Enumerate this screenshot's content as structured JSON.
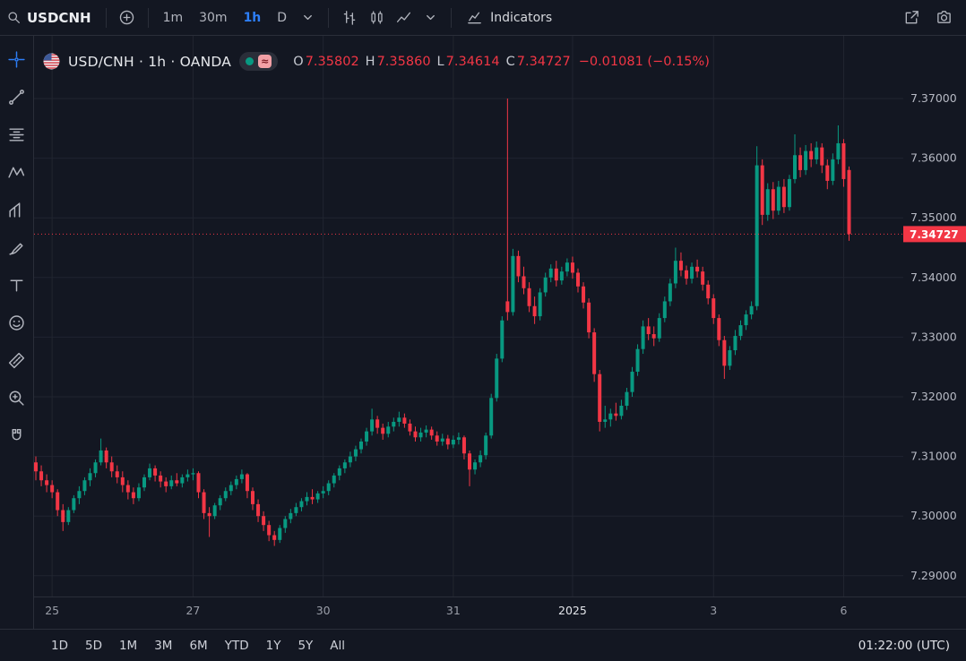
{
  "colors": {
    "bg": "#131722",
    "panel_border": "#2a2e39",
    "grid": "#212530",
    "up": "#089981",
    "down": "#f23645",
    "accent": "#2d7ff9",
    "axis_text": "#b7bac4",
    "muted": "#b2b5be"
  },
  "top_toolbar": {
    "symbol": "USDCNH",
    "intervals": [
      {
        "label": "1m",
        "active": false
      },
      {
        "label": "30m",
        "active": false
      },
      {
        "label": "1h",
        "active": true
      },
      {
        "label": "D",
        "active": false
      }
    ],
    "indicators_label": "Indicators"
  },
  "left_toolbar": {
    "tools": [
      {
        "name": "crosshair",
        "active": true
      },
      {
        "name": "trend-line",
        "active": false
      },
      {
        "name": "fib-retracement",
        "active": false
      },
      {
        "name": "pattern",
        "active": false
      },
      {
        "name": "projection",
        "active": false
      },
      {
        "name": "brush",
        "active": false
      },
      {
        "name": "text",
        "active": false
      },
      {
        "name": "emoji",
        "active": false
      },
      {
        "name": "measure",
        "active": false
      },
      {
        "name": "zoom",
        "active": false
      },
      {
        "name": "magnet",
        "active": false
      }
    ]
  },
  "legend": {
    "title": "USD/CNH · 1h · OANDA",
    "status": {
      "dot": "market-open",
      "badge": "≈"
    },
    "ohlc": [
      {
        "label": "O",
        "value": "7.35802"
      },
      {
        "label": "H",
        "value": "7.35860"
      },
      {
        "label": "L",
        "value": "7.34614"
      },
      {
        "label": "C",
        "value": "7.34727"
      }
    ],
    "change": "−0.01081 (−0.15%)"
  },
  "price_axis": {
    "last_price_label": "7.34727"
  },
  "bottom_toolbar": {
    "ranges": [
      "1D",
      "5D",
      "1M",
      "3M",
      "6M",
      "YTD",
      "1Y",
      "5Y",
      "All"
    ],
    "clock": "01:22:00 (UTC)"
  },
  "chart_data": {
    "type": "candlestick",
    "title": "USD/CNH 1h OANDA",
    "interval": "1h",
    "exchange": "OANDA",
    "ohlc_current": {
      "open": 7.35802,
      "high": 7.3586,
      "low": 7.34614,
      "close": 7.34727,
      "change": -0.01081,
      "change_pct": -0.15
    },
    "last_price": 7.34727,
    "ylim": [
      7.2866,
      7.3805
    ],
    "y_ticks": [
      {
        "v": 7.37,
        "label": "7.37000"
      },
      {
        "v": 7.36,
        "label": "7.36000"
      },
      {
        "v": 7.35,
        "label": "7.35000"
      },
      {
        "v": 7.34,
        "label": "7.34000"
      },
      {
        "v": 7.33,
        "label": "7.33000"
      },
      {
        "v": 7.32,
        "label": "7.32000"
      },
      {
        "v": 7.31,
        "label": "7.31000"
      },
      {
        "v": 7.3,
        "label": "7.30000"
      },
      {
        "v": 7.29,
        "label": "7.29000"
      }
    ],
    "x_ticks": [
      {
        "i": 3,
        "label": "25"
      },
      {
        "i": 29,
        "label": "27"
      },
      {
        "i": 53,
        "label": "30"
      },
      {
        "i": 77,
        "label": "31"
      },
      {
        "i": 99,
        "label": "2025",
        "major": true
      },
      {
        "i": 125,
        "label": "3"
      },
      {
        "i": 149,
        "label": "6"
      }
    ],
    "candles": [
      [
        7.309,
        7.31,
        7.306,
        7.3075
      ],
      [
        7.3075,
        7.3085,
        7.305,
        7.306
      ],
      [
        7.306,
        7.307,
        7.304,
        7.3052
      ],
      [
        7.3052,
        7.306,
        7.303,
        7.304
      ],
      [
        7.304,
        7.3045,
        7.3,
        7.301
      ],
      [
        7.301,
        7.302,
        7.2975,
        7.299
      ],
      [
        7.299,
        7.3015,
        7.2985,
        7.301
      ],
      [
        7.301,
        7.3035,
        7.3005,
        7.303
      ],
      [
        7.303,
        7.305,
        7.302,
        7.3042
      ],
      [
        7.3042,
        7.3065,
        7.3035,
        7.306
      ],
      [
        7.306,
        7.308,
        7.305,
        7.3072
      ],
      [
        7.3072,
        7.3095,
        7.3065,
        7.309
      ],
      [
        7.309,
        7.313,
        7.3085,
        7.311
      ],
      [
        7.311,
        7.3115,
        7.308,
        7.309
      ],
      [
        7.309,
        7.31,
        7.3065,
        7.3075
      ],
      [
        7.3075,
        7.3085,
        7.3055,
        7.3065
      ],
      [
        7.3065,
        7.3075,
        7.304,
        7.3052
      ],
      [
        7.3052,
        7.306,
        7.3028,
        7.304
      ],
      [
        7.304,
        7.3048,
        7.302,
        7.303
      ],
      [
        7.303,
        7.3055,
        7.3025,
        7.3048
      ],
      [
        7.3048,
        7.307,
        7.3042,
        7.3065
      ],
      [
        7.3065,
        7.3088,
        7.306,
        7.308
      ],
      [
        7.308,
        7.3085,
        7.3058,
        7.3068
      ],
      [
        7.3068,
        7.3075,
        7.3048,
        7.3058
      ],
      [
        7.3058,
        7.3065,
        7.304,
        7.305
      ],
      [
        7.305,
        7.3068,
        7.3045,
        7.306
      ],
      [
        7.306,
        7.3072,
        7.305,
        7.3055
      ],
      [
        7.3055,
        7.307,
        7.3048,
        7.3065
      ],
      [
        7.3065,
        7.3078,
        7.3058,
        7.307
      ],
      [
        7.307,
        7.308,
        7.306,
        7.3072
      ],
      [
        7.3072,
        7.3075,
        7.303,
        7.304
      ],
      [
        7.304,
        7.3045,
        7.2995,
        7.3005
      ],
      [
        7.3005,
        7.3015,
        7.2965,
        7.3
      ],
      [
        7.3,
        7.3022,
        7.2995,
        7.3018
      ],
      [
        7.3018,
        7.3035,
        7.301,
        7.303
      ],
      [
        7.303,
        7.3048,
        7.3025,
        7.3042
      ],
      [
        7.3042,
        7.3058,
        7.3035,
        7.3052
      ],
      [
        7.3052,
        7.3068,
        7.3045,
        7.3062
      ],
      [
        7.3062,
        7.3078,
        7.3055,
        7.307
      ],
      [
        7.307,
        7.3072,
        7.303,
        7.3042
      ],
      [
        7.3042,
        7.3048,
        7.301,
        7.302
      ],
      [
        7.302,
        7.3028,
        7.299,
        7.3
      ],
      [
        7.3,
        7.3008,
        7.2975,
        7.2985
      ],
      [
        7.2985,
        7.2992,
        7.2958,
        7.2968
      ],
      [
        7.2968,
        7.2975,
        7.295,
        7.296
      ],
      [
        7.296,
        7.2985,
        7.2955,
        7.298
      ],
      [
        7.298,
        7.3,
        7.2972,
        7.2995
      ],
      [
        7.2995,
        7.3012,
        7.2988,
        7.3005
      ],
      [
        7.3005,
        7.3022,
        7.3,
        7.3015
      ],
      [
        7.3015,
        7.303,
        7.3008,
        7.3025
      ],
      [
        7.3025,
        7.304,
        7.3018,
        7.3032
      ],
      [
        7.3032,
        7.3045,
        7.302,
        7.3028
      ],
      [
        7.3028,
        7.3042,
        7.3022,
        7.3038
      ],
      [
        7.3038,
        7.305,
        7.303,
        7.3042
      ],
      [
        7.3042,
        7.306,
        7.3035,
        7.3055
      ],
      [
        7.3055,
        7.3072,
        7.3048,
        7.3068
      ],
      [
        7.3068,
        7.3085,
        7.306,
        7.308
      ],
      [
        7.308,
        7.3095,
        7.3072,
        7.309
      ],
      [
        7.309,
        7.3108,
        7.3082,
        7.31
      ],
      [
        7.31,
        7.3118,
        7.3092,
        7.3112
      ],
      [
        7.3112,
        7.313,
        7.3105,
        7.3125
      ],
      [
        7.3125,
        7.3148,
        7.3118,
        7.3142
      ],
      [
        7.3142,
        7.318,
        7.3135,
        7.3162
      ],
      [
        7.3162,
        7.3168,
        7.3138,
        7.3148
      ],
      [
        7.3148,
        7.3155,
        7.3128,
        7.3138
      ],
      [
        7.3138,
        7.3158,
        7.3132,
        7.315
      ],
      [
        7.315,
        7.3165,
        7.3142,
        7.3158
      ],
      [
        7.3158,
        7.3175,
        7.315,
        7.3165
      ],
      [
        7.3165,
        7.3172,
        7.3148,
        7.3155
      ],
      [
        7.3155,
        7.3162,
        7.3135,
        7.3142
      ],
      [
        7.3142,
        7.315,
        7.3125,
        7.3132
      ],
      [
        7.3132,
        7.3148,
        7.3125,
        7.314
      ],
      [
        7.314,
        7.3152,
        7.3132,
        7.3145
      ],
      [
        7.3145,
        7.315,
        7.3128,
        7.3135
      ],
      [
        7.3135,
        7.3142,
        7.3118,
        7.3125
      ],
      [
        7.3125,
        7.3138,
        7.3118,
        7.313
      ],
      [
        7.313,
        7.3136,
        7.3112,
        7.312
      ],
      [
        7.312,
        7.3135,
        7.3114,
        7.3128
      ],
      [
        7.3128,
        7.314,
        7.312,
        7.3132
      ],
      [
        7.3132,
        7.3135,
        7.3095,
        7.3105
      ],
      [
        7.3105,
        7.311,
        7.305,
        7.3078
      ],
      [
        7.3078,
        7.3095,
        7.307,
        7.309
      ],
      [
        7.309,
        7.311,
        7.3082,
        7.3102
      ],
      [
        7.3102,
        7.314,
        7.3095,
        7.3135
      ],
      [
        7.3135,
        7.3205,
        7.313,
        7.3198
      ],
      [
        7.3198,
        7.3272,
        7.3192,
        7.3264
      ],
      [
        7.3264,
        7.3335,
        7.3258,
        7.3328
      ],
      [
        7.336,
        7.37,
        7.3328,
        7.3342
      ],
      [
        7.3342,
        7.3448,
        7.3336,
        7.3436
      ],
      [
        7.3436,
        7.3445,
        7.3392,
        7.3402
      ],
      [
        7.3402,
        7.3418,
        7.3372,
        7.3382
      ],
      [
        7.3382,
        7.3392,
        7.3342,
        7.3352
      ],
      [
        7.3352,
        7.3368,
        7.3322,
        7.3335
      ],
      [
        7.3335,
        7.3382,
        7.3328,
        7.3375
      ],
      [
        7.3375,
        7.3408,
        7.3368,
        7.34
      ],
      [
        7.34,
        7.3422,
        7.3392,
        7.3415
      ],
      [
        7.3415,
        7.3428,
        7.3385,
        7.3395
      ],
      [
        7.3395,
        7.3418,
        7.3388,
        7.341
      ],
      [
        7.341,
        7.3432,
        7.3402,
        7.3425
      ],
      [
        7.3425,
        7.3435,
        7.3398,
        7.3408
      ],
      [
        7.3408,
        7.3415,
        7.3375,
        7.3385
      ],
      [
        7.3385,
        7.3392,
        7.3348,
        7.3358
      ],
      [
        7.3358,
        7.3365,
        7.3298,
        7.3308
      ],
      [
        7.3308,
        7.3315,
        7.3225,
        7.3238
      ],
      [
        7.3238,
        7.3245,
        7.3142,
        7.3158
      ],
      [
        7.3158,
        7.3185,
        7.3148,
        7.3162
      ],
      [
        7.3162,
        7.318,
        7.315,
        7.3172
      ],
      [
        7.3172,
        7.319,
        7.316,
        7.3168
      ],
      [
        7.3168,
        7.3195,
        7.3162,
        7.3185
      ],
      [
        7.3185,
        7.3215,
        7.3178,
        7.3208
      ],
      [
        7.3208,
        7.325,
        7.32,
        7.3242
      ],
      [
        7.3242,
        7.3288,
        7.3235,
        7.328
      ],
      [
        7.328,
        7.3328,
        7.3272,
        7.3318
      ],
      [
        7.3318,
        7.3332,
        7.3295,
        7.3305
      ],
      [
        7.3305,
        7.3318,
        7.3285,
        7.3298
      ],
      [
        7.3298,
        7.334,
        7.3292,
        7.3332
      ],
      [
        7.3332,
        7.3368,
        7.3325,
        7.336
      ],
      [
        7.336,
        7.3398,
        7.3352,
        7.339
      ],
      [
        7.339,
        7.345,
        7.3382,
        7.3428
      ],
      [
        7.3428,
        7.3442,
        7.3402,
        7.3412
      ],
      [
        7.3412,
        7.342,
        7.3388,
        7.3398
      ],
      [
        7.3398,
        7.3425,
        7.339,
        7.3418
      ],
      [
        7.3418,
        7.343,
        7.34,
        7.341
      ],
      [
        7.341,
        7.3418,
        7.3378,
        7.3388
      ],
      [
        7.3388,
        7.3395,
        7.3355,
        7.3365
      ],
      [
        7.3365,
        7.3372,
        7.3322,
        7.3332
      ],
      [
        7.3332,
        7.3338,
        7.3285,
        7.3295
      ],
      [
        7.3295,
        7.3302,
        7.323,
        7.3252
      ],
      [
        7.3252,
        7.3285,
        7.3245,
        7.3278
      ],
      [
        7.3278,
        7.3312,
        7.327,
        7.3302
      ],
      [
        7.3302,
        7.3328,
        7.3295,
        7.332
      ],
      [
        7.332,
        7.3345,
        7.3312,
        7.3338
      ],
      [
        7.3338,
        7.336,
        7.333,
        7.3352
      ],
      [
        7.3352,
        7.362,
        7.3345,
        7.3588
      ],
      [
        7.3588,
        7.3598,
        7.3488,
        7.3505
      ],
      [
        7.3505,
        7.3558,
        7.3495,
        7.3548
      ],
      [
        7.3548,
        7.356,
        7.3498,
        7.3512
      ],
      [
        7.3512,
        7.3562,
        7.3505,
        7.3552
      ],
      [
        7.3552,
        7.3565,
        7.3508,
        7.3518
      ],
      [
        7.3518,
        7.3572,
        7.3512,
        7.3565
      ],
      [
        7.3565,
        7.364,
        7.3558,
        7.3605
      ],
      [
        7.3605,
        7.3618,
        7.3568,
        7.358
      ],
      [
        7.358,
        7.3622,
        7.3572,
        7.3612
      ],
      [
        7.3612,
        7.3625,
        7.3585,
        7.3598
      ],
      [
        7.3598,
        7.3628,
        7.359,
        7.3618
      ],
      [
        7.3618,
        7.3625,
        7.3575,
        7.3588
      ],
      [
        7.3588,
        7.3598,
        7.3548,
        7.3562
      ],
      [
        7.3562,
        7.3608,
        7.3555,
        7.3598
      ],
      [
        7.3598,
        7.3655,
        7.359,
        7.3625
      ],
      [
        7.3625,
        7.3632,
        7.3552,
        7.3565
      ],
      [
        7.35802,
        7.3586,
        7.34614,
        7.34727
      ]
    ]
  }
}
